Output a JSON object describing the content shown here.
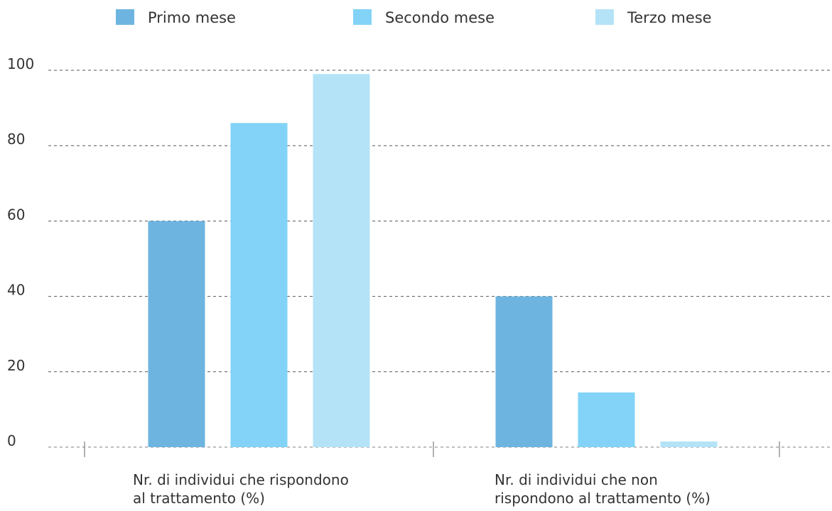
{
  "chart_data": {
    "type": "bar",
    "categories": [
      [
        "Nr. di individui che rispondono",
        "al trattamento (%)"
      ],
      [
        "Nr. di individui che non",
        "rispondono al trattamento (%)"
      ]
    ],
    "series": [
      {
        "name": "Primo mese",
        "color": "#6db5e0",
        "values": [
          60,
          40
        ]
      },
      {
        "name": "Secondo mese",
        "color": "#82d3f7",
        "values": [
          86,
          14.5
        ]
      },
      {
        "name": "Terzo mese",
        "color": "#b4e3f7",
        "values": [
          99,
          1.5
        ]
      }
    ],
    "yticks": [
      "0",
      "20",
      "40",
      "60",
      "80",
      "100"
    ],
    "ylim": [
      0,
      100
    ],
    "grid": true,
    "legend_position": "top",
    "title": "",
    "xlabel": "",
    "ylabel": ""
  }
}
